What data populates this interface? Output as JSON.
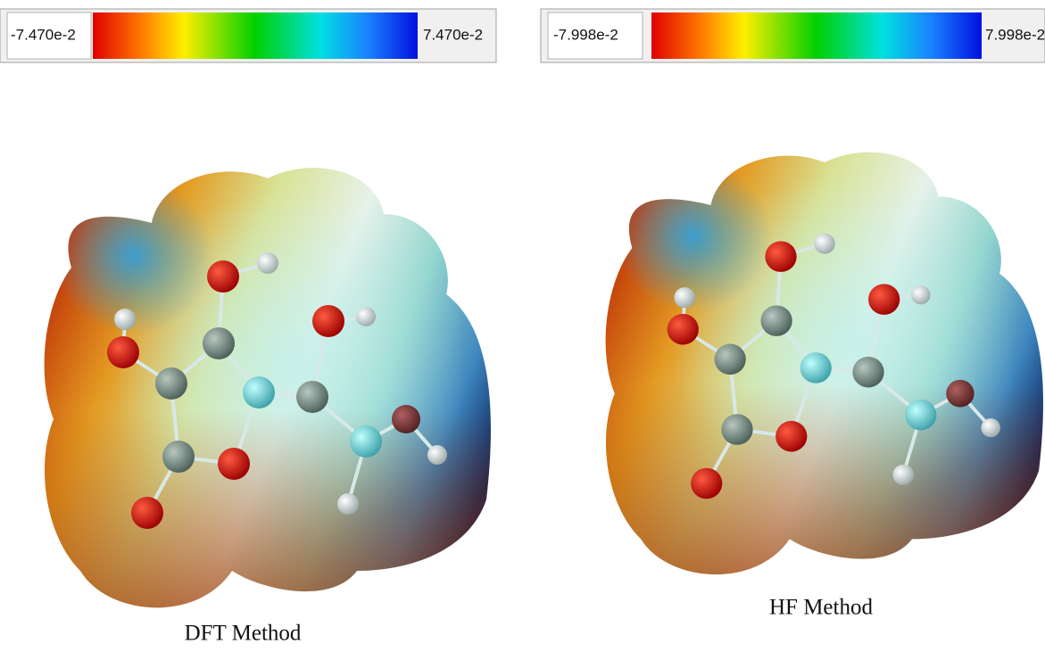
{
  "panels": [
    {
      "scale": {
        "min_label": "-7.470e-2",
        "max_label": "7.470e-2"
      },
      "caption": "DFT Method"
    },
    {
      "scale": {
        "min_label": "-7.998e-2",
        "max_label": "7.998e-2"
      },
      "caption": "HF Method"
    }
  ]
}
